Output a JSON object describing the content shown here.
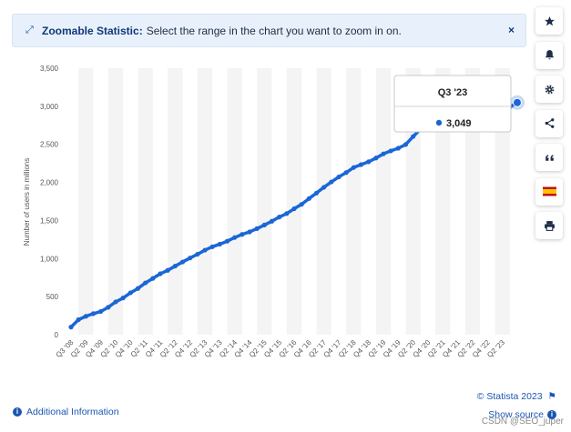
{
  "banner": {
    "title": "Zoomable Statistic:",
    "text": "Select the range in the chart you want to zoom in on.",
    "close_label": "×"
  },
  "toolbar": {
    "items": [
      {
        "name": "star-icon"
      },
      {
        "name": "bell-icon"
      },
      {
        "name": "gear-icon"
      },
      {
        "name": "share-icon"
      },
      {
        "name": "quote-icon"
      },
      {
        "name": "flag-spain-icon"
      },
      {
        "name": "print-icon"
      }
    ]
  },
  "footer": {
    "additional_info": "Additional Information",
    "copyright": "© Statista 2023",
    "show_source": "Show source",
    "watermark": "CSDN @SEO_juper"
  },
  "tooltip": {
    "title": "Q3 '23",
    "value": "3,049"
  },
  "colors": {
    "line": "#1a66d6",
    "accent": "#10387a",
    "band": "#f4f4f4"
  },
  "chart_data": {
    "type": "line",
    "ylabel": "Number of users in millions",
    "ylim": [
      0,
      3500
    ],
    "yticks": [
      0,
      500,
      1000,
      1500,
      2000,
      2500,
      3000,
      3500
    ],
    "ytick_labels": [
      "0",
      "500",
      "1,000",
      "1,500",
      "2,000",
      "2,500",
      "3,000",
      "3,500"
    ],
    "tick_labels": [
      "Q3 '08",
      "Q2 '09",
      "Q4 '09",
      "Q2 '10",
      "Q4 '10",
      "Q2 '11",
      "Q4 '11",
      "Q2 '12",
      "Q4 '12",
      "Q2 '13",
      "Q4 '13",
      "Q2 '14",
      "Q4 '14",
      "Q2 '15",
      "Q4 '15",
      "Q2 '16",
      "Q4 '16",
      "Q2 '17",
      "Q4 '17",
      "Q2 '18",
      "Q4 '18",
      "Q2 '19",
      "Q4 '19",
      "Q2 '20",
      "Q4 '20",
      "Q2 '21",
      "Q4 '21",
      "Q2 '22",
      "Q4 '22",
      "Q2 '23"
    ],
    "grid": false,
    "alternating_bands": true,
    "series": [
      {
        "x": [
          "Q3 '08",
          "Q4 '08",
          "Q1 '09",
          "Q2 '09",
          "Q3 '09",
          "Q4 '09",
          "Q1 '10",
          "Q2 '10",
          "Q3 '10",
          "Q4 '10",
          "Q1 '11",
          "Q2 '11",
          "Q3 '11",
          "Q4 '11",
          "Q1 '12",
          "Q2 '12",
          "Q3 '12",
          "Q4 '12",
          "Q1 '13",
          "Q2 '13",
          "Q3 '13",
          "Q4 '13",
          "Q1 '14",
          "Q2 '14",
          "Q3 '14",
          "Q4 '14",
          "Q1 '15",
          "Q2 '15",
          "Q3 '15",
          "Q4 '15",
          "Q1 '16",
          "Q2 '16",
          "Q3 '16",
          "Q4 '16",
          "Q1 '17",
          "Q2 '17",
          "Q3 '17",
          "Q4 '17",
          "Q1 '18",
          "Q2 '18",
          "Q3 '18",
          "Q4 '18",
          "Q1 '19",
          "Q2 '19",
          "Q3 '19",
          "Q4 '19",
          "Q1 '20",
          "Q2 '20",
          "Q3 '20",
          "Q4 '20",
          "Q1 '21",
          "Q2 '21",
          "Q3 '21",
          "Q4 '21",
          "Q1 '22",
          "Q2 '22",
          "Q3 '22",
          "Q4 '22",
          "Q1 '23",
          "Q2 '23",
          "Q3 '23"
        ],
        "values": [
          100,
          197,
          242,
          276,
          305,
          360,
          431,
          482,
          550,
          608,
          680,
          739,
          800,
          845,
          901,
          955,
          1007,
          1056,
          1110,
          1155,
          1189,
          1228,
          1276,
          1317,
          1350,
          1393,
          1441,
          1490,
          1545,
          1591,
          1654,
          1712,
          1788,
          1860,
          1936,
          2006,
          2072,
          2129,
          2196,
          2234,
          2271,
          2320,
          2375,
          2414,
          2449,
          2498,
          2603,
          2701,
          2740,
          2797,
          2853,
          2895,
          2910,
          2912,
          2936,
          2934,
          2958,
          2963,
          2989,
          2989,
          3049
        ]
      }
    ],
    "highlight": {
      "x": "Q3 '23",
      "value": 3049
    }
  }
}
